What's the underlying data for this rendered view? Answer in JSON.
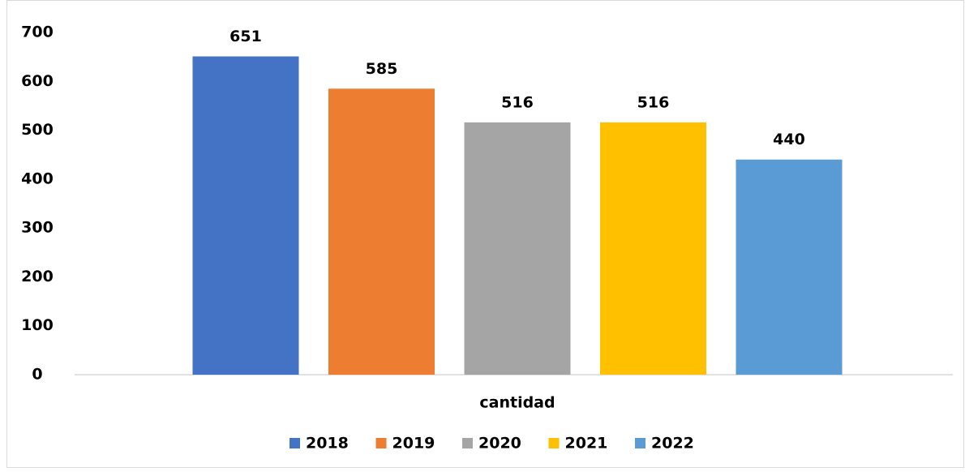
{
  "chart_data": {
    "type": "bar",
    "categories": [
      "cantidad"
    ],
    "series": [
      {
        "name": "2018",
        "color": "#4472c4",
        "values": [
          651
        ]
      },
      {
        "name": "2019",
        "color": "#ed7d31",
        "values": [
          585
        ]
      },
      {
        "name": "2020",
        "color": "#a5a5a5",
        "values": [
          516
        ]
      },
      {
        "name": "2021",
        "color": "#ffc000",
        "values": [
          516
        ]
      },
      {
        "name": "2022",
        "color": "#5b9bd5",
        "values": [
          440
        ]
      }
    ],
    "ylim": [
      0,
      700
    ],
    "yticks": [
      0,
      100,
      200,
      300,
      400,
      500,
      600,
      700
    ],
    "grid": false,
    "legend": "bottom"
  }
}
